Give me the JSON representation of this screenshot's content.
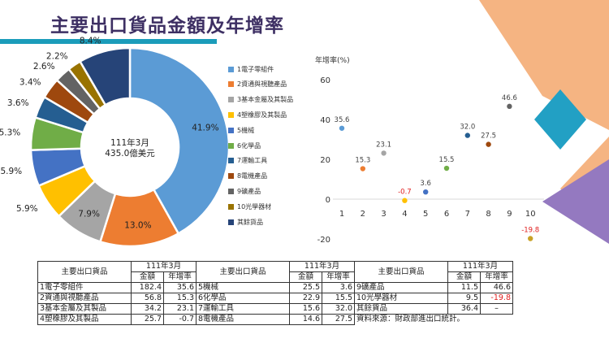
{
  "page": {
    "title": "主要出口貨品金額及年增率",
    "colors": {
      "title": "#3d2f63",
      "title_bar": "#1b9cba",
      "deco_orange": "#f5b482",
      "deco_teal": "#22a0c4",
      "deco_purple": "#9479c0"
    }
  },
  "chart_data": [
    {
      "type": "pie",
      "style": "donut",
      "center_text": [
        "111年3月",
        "435.0億美元"
      ],
      "slices": [
        {
          "name": "1電子零組件",
          "value": 41.9,
          "label": "41.9%",
          "color": "#5b9bd5"
        },
        {
          "name": "2資通與視聽產品",
          "value": 13.0,
          "label": "13.0%",
          "color": "#ed7d31"
        },
        {
          "name": "3基本金屬及其製品",
          "value": 7.9,
          "label": "7.9%",
          "color": "#a5a5a5"
        },
        {
          "name": "4塑橡膠及其製品",
          "value": 5.9,
          "label": "5.9%",
          "color": "#ffc000"
        },
        {
          "name": "5機械",
          "value": 5.9,
          "label": "5.9%",
          "color": "#4472c4"
        },
        {
          "name": "6化學品",
          "value": 5.3,
          "label": "5.3%",
          "color": "#70ad47"
        },
        {
          "name": "7運輸工具",
          "value": 3.6,
          "label": "3.6%",
          "color": "#255e91"
        },
        {
          "name": "8電機產品",
          "value": 3.4,
          "label": "3.4%",
          "color": "#9e480e"
        },
        {
          "name": "9礦產品",
          "value": 2.6,
          "label": "2.6%",
          "color": "#636363"
        },
        {
          "name": "10光學器材",
          "value": 2.2,
          "label": "2.2%",
          "color": "#997300"
        },
        {
          "name": "其餘貨品",
          "value": 8.4,
          "label": "8.4%",
          "color": "#264478"
        }
      ]
    },
    {
      "type": "scatter",
      "ylabel": "年增率(%)",
      "ylim": [
        -20,
        60
      ],
      "yticks": [
        "60",
        "40",
        "20",
        "0",
        "-20"
      ],
      "xlim": [
        1,
        10
      ],
      "xticks": [
        "1",
        "2",
        "3",
        "4",
        "5",
        "6",
        "7",
        "8",
        "9",
        "10"
      ],
      "grid": false,
      "points": [
        {
          "x": 1,
          "y": 35.6,
          "label": "35.6",
          "color": "#5b9bd5"
        },
        {
          "x": 2,
          "y": 15.3,
          "label": "15.3",
          "color": "#ed7d31"
        },
        {
          "x": 3,
          "y": 23.1,
          "label": "23.1",
          "color": "#a5a5a5"
        },
        {
          "x": 4,
          "y": -0.7,
          "label": "-0.7",
          "color": "#ffc000",
          "label_color": "#e02020"
        },
        {
          "x": 5,
          "y": 3.6,
          "label": "3.6",
          "color": "#4472c4"
        },
        {
          "x": 6,
          "y": 15.5,
          "label": "15.5",
          "color": "#70ad47"
        },
        {
          "x": 7,
          "y": 32.0,
          "label": "32.0",
          "color": "#255e91"
        },
        {
          "x": 8,
          "y": 27.5,
          "label": "27.5",
          "color": "#9e480e"
        },
        {
          "x": 9,
          "y": 46.6,
          "label": "46.6",
          "color": "#636363"
        },
        {
          "x": 10,
          "y": -19.8,
          "label": "-19.8",
          "color": "#c9a227",
          "label_color": "#e02020"
        }
      ]
    }
  ],
  "table": {
    "group_header": "主要出口貨品",
    "period": "111年3月",
    "col_amount": "金額",
    "col_growth": "年增率",
    "groups": [
      {
        "rows": [
          {
            "name": "1電子零組件",
            "amount": "182.4",
            "growth": "35.6"
          },
          {
            "name": "2資通與視聽產品",
            "amount": "56.8",
            "growth": "15.3"
          },
          {
            "name": "3基本金屬及其製品",
            "amount": "34.2",
            "growth": "23.1"
          },
          {
            "name": "4塑橡膠及其製品",
            "amount": "25.7",
            "growth": "-0.7"
          }
        ]
      },
      {
        "rows": [
          {
            "name": "5機械",
            "amount": "25.5",
            "growth": "3.6"
          },
          {
            "name": "6化學品",
            "amount": "22.9",
            "growth": "15.5"
          },
          {
            "name": "7運輸工具",
            "amount": "15.6",
            "growth": "32.0"
          },
          {
            "name": "8電機產品",
            "amount": "14.6",
            "growth": "27.5"
          }
        ]
      },
      {
        "rows": [
          {
            "name": "9礦產品",
            "amount": "11.5",
            "growth": "46.6"
          },
          {
            "name": "10光學器材",
            "amount": "9.5",
            "growth": "-19.8"
          },
          {
            "name": "其餘貨品",
            "amount": "36.4",
            "growth": "–"
          }
        ]
      }
    ],
    "source_note": "資料來源：財政部進出口統計。"
  }
}
